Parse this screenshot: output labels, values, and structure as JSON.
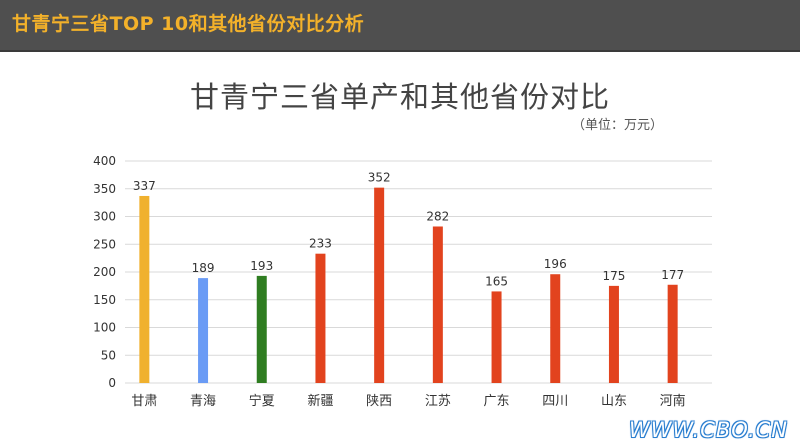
{
  "header": {
    "title": "甘青宁三省TOP 10和其他省份对比分析"
  },
  "watermark": "WWW.CBO.CN",
  "chart_data": {
    "type": "bar",
    "title": "甘青宁三省单产和其他省份对比",
    "unit_note": "（单位：万元）",
    "categories": [
      "甘肃",
      "青海",
      "宁夏",
      "新疆",
      "陕西",
      "江苏",
      "广东",
      "四川",
      "山东",
      "河南"
    ],
    "values": [
      337,
      189,
      193,
      233,
      352,
      282,
      165,
      196,
      175,
      177
    ],
    "bar_colors": [
      "#f0b12e",
      "#6a9bf5",
      "#2f7d21",
      "#e2431e",
      "#e2431e",
      "#e2431e",
      "#e2431e",
      "#e2431e",
      "#e2431e",
      "#e2431e"
    ],
    "ylim": [
      0,
      400
    ],
    "yticks": [
      0,
      50,
      100,
      150,
      200,
      250,
      300,
      350,
      400
    ],
    "grid": true,
    "xlabel": "",
    "ylabel": ""
  }
}
